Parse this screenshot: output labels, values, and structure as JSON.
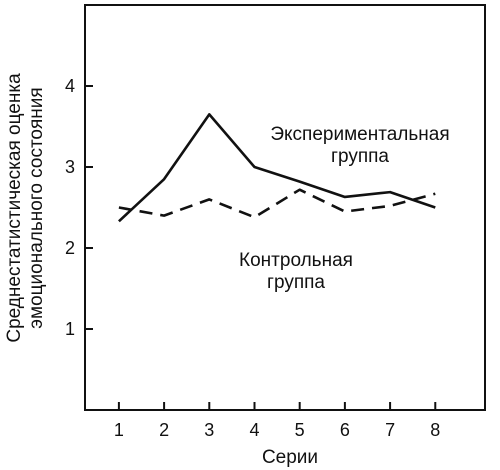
{
  "chart_data": {
    "type": "line",
    "title": "",
    "xlabel": "Серии",
    "ylabel_lines": [
      "Среднестатистическая оценка",
      "эмоционального состояния"
    ],
    "x": [
      1,
      2,
      3,
      4,
      5,
      6,
      7,
      8
    ],
    "xlim": [
      0.25,
      9.1
    ],
    "ylim": [
      0,
      5
    ],
    "yticks": [
      1,
      2,
      3,
      4
    ],
    "grid": false,
    "series": [
      {
        "name_lines": [
          "Экспериментальная",
          "группа"
        ],
        "style": "solid",
        "color": "#111111",
        "values": [
          2.33,
          2.85,
          3.65,
          3.0,
          2.82,
          2.63,
          2.69,
          2.5
        ]
      },
      {
        "name_lines": [
          "Контрольная",
          "группа"
        ],
        "style": "dashed",
        "color": "#111111",
        "values": [
          2.5,
          2.4,
          2.6,
          2.38,
          2.72,
          2.45,
          2.52,
          2.67
        ]
      }
    ]
  }
}
